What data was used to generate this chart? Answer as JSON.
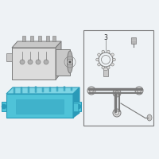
{
  "bg_color": "#eef2f5",
  "cyan": "#4fc3d8",
  "cyan_edge": "#2a9ab8",
  "cyan_light": "#7dd4e4",
  "gray_line": "#7a7a7a",
  "gray_fill": "#c8c8c8",
  "gray_med": "#b0b0b0",
  "gray_light": "#dcdcdc",
  "gray_dark": "#555555",
  "white": "#f5f5f5",
  "label_color": "#222222",
  "figsize": [
    2.0,
    2.0
  ],
  "dpi": 100
}
